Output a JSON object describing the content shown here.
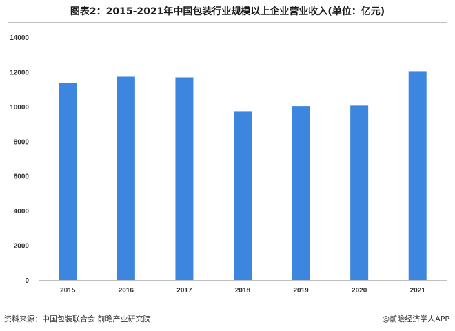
{
  "title": "图表2：2015-2021年中国包装行业规模以上企业营业收入(单位：亿元)",
  "source": "资料来源：中国包装联合会 前瞻产业研究院",
  "credit": "@前瞻经济学人APP",
  "colors": {
    "bar": "#3d86e0",
    "axis": "#bfbfbf"
  },
  "chart_data": {
    "type": "bar",
    "title": "图表2：2015-2021年中国包装行业规模以上企业营业收入(单位：亿元)",
    "categories": [
      "2015",
      "2016",
      "2017",
      "2018",
      "2019",
      "2020",
      "2021"
    ],
    "values": [
      11350,
      11720,
      11680,
      9700,
      10030,
      10060,
      12040
    ],
    "yticks": [
      0,
      2000,
      4000,
      6000,
      8000,
      10000,
      12000,
      14000
    ],
    "ylim": [
      0,
      14000
    ],
    "grid": false,
    "legend": "none"
  }
}
